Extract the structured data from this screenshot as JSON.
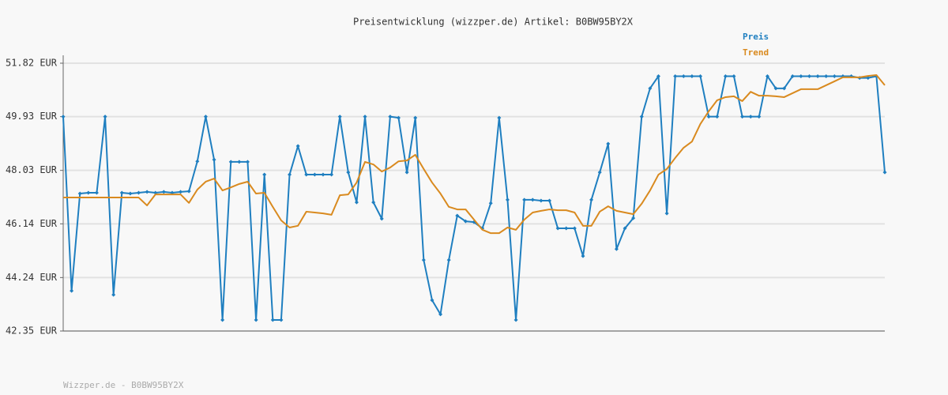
{
  "chart_data": {
    "type": "line",
    "title": "Preisentwicklung (wizzper.de) Artikel: B0BW95BY2X",
    "footer": "Wizzper.de - B0BW95BY2X",
    "ylim": [
      42.35,
      51.82
    ],
    "yticks": [
      {
        "value": 42.35,
        "label": "42.35 EUR"
      },
      {
        "value": 44.24,
        "label": "44.24 EUR"
      },
      {
        "value": 46.14,
        "label": "46.14 EUR"
      },
      {
        "value": 48.03,
        "label": "48.03 EUR"
      },
      {
        "value": 49.93,
        "label": "49.93 EUR"
      },
      {
        "value": 51.82,
        "label": "51.82 EUR"
      }
    ],
    "grid": true,
    "legend": "top-right",
    "series": [
      {
        "name": "Preis",
        "color": "#1f7fc0",
        "markers": true,
        "values": [
          49.93,
          43.77,
          47.21,
          47.24,
          47.24,
          49.93,
          43.63,
          47.24,
          47.21,
          47.24,
          47.27,
          47.24,
          47.27,
          47.24,
          47.27,
          47.29,
          48.35,
          49.93,
          48.41,
          42.74,
          48.33,
          48.33,
          48.33,
          42.74,
          47.88,
          42.74,
          42.74,
          47.88,
          48.89,
          47.88,
          47.88,
          47.88,
          47.88,
          49.93,
          47.96,
          46.9,
          49.93,
          46.9,
          46.32,
          49.93,
          49.89,
          47.96,
          49.89,
          44.86,
          43.44,
          42.94,
          44.86,
          46.43,
          46.23,
          46.2,
          45.98,
          46.87,
          49.89,
          46.99,
          42.74,
          46.99,
          46.99,
          46.96,
          46.96,
          45.98,
          45.98,
          45.98,
          45.0,
          46.99,
          47.96,
          48.97,
          45.25,
          45.98,
          46.34,
          49.93,
          50.93,
          51.36,
          46.51,
          51.36,
          51.36,
          51.36,
          51.36,
          49.93,
          49.93,
          51.36,
          51.36,
          49.93,
          49.93,
          49.93,
          51.36,
          50.93,
          50.93,
          51.36,
          51.36,
          51.36,
          51.36,
          51.36,
          51.36,
          51.36,
          51.36,
          51.3,
          51.3,
          51.36,
          47.96
        ]
      },
      {
        "name": "Trend",
        "color": "#d98a1f",
        "markers": false,
        "values": [
          47.07,
          47.07,
          47.07,
          47.07,
          47.07,
          47.07,
          47.07,
          47.07,
          47.07,
          47.07,
          46.79,
          47.18,
          47.18,
          47.18,
          47.18,
          46.88,
          47.35,
          47.63,
          47.74,
          47.32,
          47.43,
          47.55,
          47.63,
          47.21,
          47.24,
          46.74,
          46.26,
          46.01,
          46.07,
          46.57,
          46.54,
          46.51,
          46.46,
          47.15,
          47.18,
          47.6,
          48.33,
          48.24,
          47.99,
          48.13,
          48.35,
          48.38,
          48.58,
          48.08,
          47.6,
          47.21,
          46.74,
          46.65,
          46.65,
          46.29,
          45.93,
          45.81,
          45.81,
          46.01,
          45.93,
          46.29,
          46.54,
          46.6,
          46.65,
          46.62,
          46.62,
          46.54,
          46.07,
          46.07,
          46.57,
          46.76,
          46.6,
          46.54,
          46.48,
          46.85,
          47.32,
          47.88,
          48.08,
          48.47,
          48.83,
          49.05,
          49.67,
          50.12,
          50.51,
          50.62,
          50.65,
          50.48,
          50.81,
          50.67,
          50.67,
          50.65,
          50.62,
          50.76,
          50.9,
          50.9,
          50.9,
          51.04,
          51.18,
          51.32,
          51.32,
          51.32,
          51.37,
          51.4,
          51.04
        ]
      }
    ]
  }
}
